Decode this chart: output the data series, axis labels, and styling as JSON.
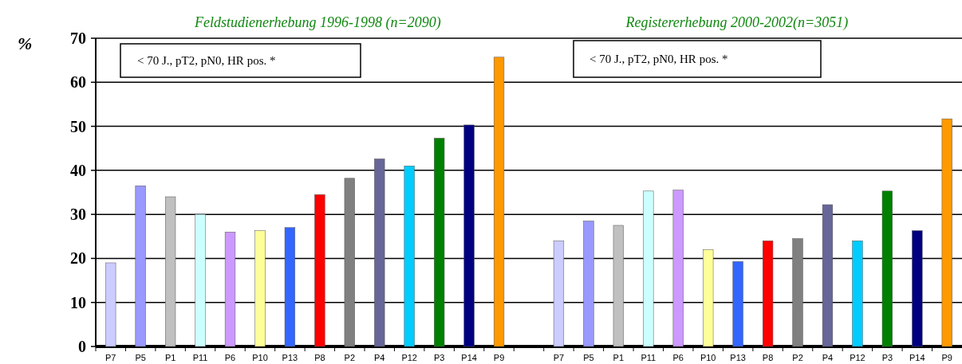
{
  "chart_data": {
    "type": "bar",
    "ylabel": "%",
    "categories": [
      "P7",
      "P5",
      "P1",
      "P11",
      "P6",
      "P10",
      "P13",
      "P8",
      "P2",
      "P4",
      "P12",
      "P3",
      "P14",
      "P9",
      null,
      "P7",
      "P5",
      "P1",
      "P11",
      "P6",
      "P10",
      "P13",
      "P8",
      "P2",
      "P4",
      "P12",
      "P3",
      "P14",
      "P9"
    ],
    "values": [
      19,
      36.5,
      34,
      30,
      26,
      26.3,
      27,
      34.5,
      38.2,
      42.6,
      41,
      47.3,
      50.3,
      65.7,
      0,
      24,
      28.5,
      27.5,
      35.3,
      35.5,
      22,
      19.3,
      24,
      24.5,
      32.2,
      24,
      35.3,
      26.3,
      51.7
    ],
    "colors": [
      "#ccccff",
      "#9999ff",
      "#c0c0c0",
      "#ccffff",
      "#cc99ff",
      "#ffff99",
      "#3366ff",
      "#ff0000",
      "#808080",
      "#666699",
      "#00ccff",
      "#008000",
      "#000080",
      "#ff9900",
      "#c0c0c0",
      "#ccccff",
      "#9999ff",
      "#c0c0c0",
      "#ccffff",
      "#cc99ff",
      "#ffff99",
      "#3366ff",
      "#ff0000",
      "#808080",
      "#666699",
      "#00ccff",
      "#008000",
      "#000080",
      "#ff9900"
    ],
    "ylim": [
      0,
      70
    ],
    "yticks": [
      0,
      10,
      20,
      30,
      40,
      50,
      60,
      70
    ],
    "grid": "y",
    "annotations": [
      "Feldstudienerhebung 1996-1998 (n=2090)",
      "Registererhebung 2000-2002(n=3051)",
      "< 70 J., pT2, pN0, HR pos. *",
      "< 70 J., pT2, pN0, HR pos. *"
    ]
  }
}
